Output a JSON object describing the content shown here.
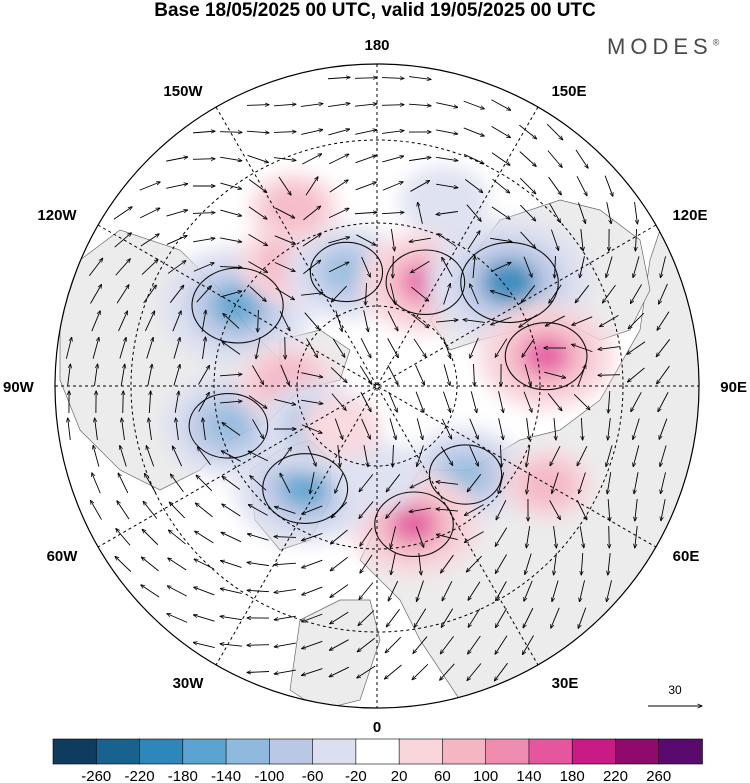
{
  "title": "Base 18/05/2025 00 UTC, valid 19/05/2025 00 UTC",
  "brand": "MODES",
  "brand_mark": "®",
  "longitude_labels": {
    "top": "180",
    "bottom": "0",
    "left": "90W",
    "right": "90E",
    "upper_left_1": "150W",
    "upper_left_2": "120W",
    "lower_left_1": "60W",
    "lower_left_2": "30W",
    "upper_right_1": "150E",
    "upper_right_2": "120E",
    "lower_right_1": "60E",
    "lower_right_2": "30E"
  },
  "vector_reference": "30",
  "colorbar": {
    "colors": [
      "#0d3c5e",
      "#17628f",
      "#2e86bb",
      "#5ba3d0",
      "#8fb9dd",
      "#bac8e6",
      "#dcdff0",
      "#ffffff",
      "#f8d6dc",
      "#f5b6c4",
      "#f08cb0",
      "#e5569e",
      "#c91b86",
      "#8f0a6c",
      "#5a0a6e"
    ],
    "ticks": [
      "-260",
      "-220",
      "-180",
      "-140",
      "-100",
      "-60",
      "-20",
      "20",
      "60",
      "100",
      "140",
      "180",
      "220",
      "260"
    ]
  },
  "anomalies": [
    {
      "lon": 45,
      "lat": 55,
      "value": -120
    },
    {
      "lon": 15,
      "lat": 50,
      "value": 140
    },
    {
      "lon": -35,
      "lat": 55,
      "value": -160
    },
    {
      "lon": -75,
      "lat": 47,
      "value": -140
    },
    {
      "lon": -120,
      "lat": 45,
      "value": -180
    },
    {
      "lon": -145,
      "lat": 48,
      "value": 90
    },
    {
      "lon": -165,
      "lat": 57,
      "value": -120
    },
    {
      "lon": 155,
      "lat": 58,
      "value": 140
    },
    {
      "lon": 128,
      "lat": 43,
      "value": -200
    },
    {
      "lon": 100,
      "lat": 42,
      "value": 150
    },
    {
      "lon": -92,
      "lat": 65,
      "value": 80
    },
    {
      "lon": -55,
      "lat": 70,
      "value": -110
    },
    {
      "lon": 0,
      "lat": 65,
      "value": -60
    },
    {
      "lon": 160,
      "lat": 35,
      "value": -60
    },
    {
      "lon": -155,
      "lat": 35,
      "value": 60
    },
    {
      "lon": 60,
      "lat": 35,
      "value": 60
    },
    {
      "lon": -40,
      "lat": 75,
      "value": 40
    }
  ]
}
